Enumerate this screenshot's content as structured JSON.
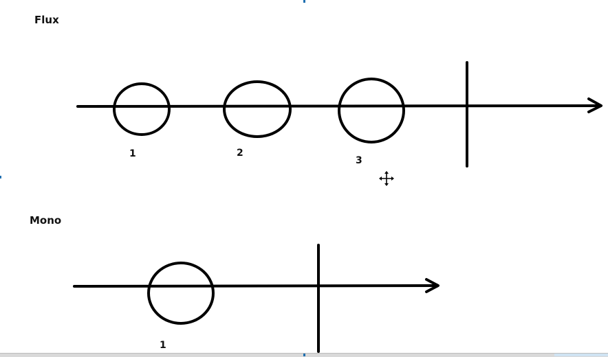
{
  "diagrams": {
    "flux": {
      "title": "Flux",
      "circle_labels": [
        "1",
        "2",
        "3"
      ]
    },
    "mono": {
      "title": "Mono",
      "circle_labels": [
        "1"
      ]
    }
  },
  "cursor": {
    "icon": "move-cursor-icon"
  },
  "colors": {
    "stroke": "#000000",
    "text": "#111111",
    "marker": "#1f6fb0"
  }
}
